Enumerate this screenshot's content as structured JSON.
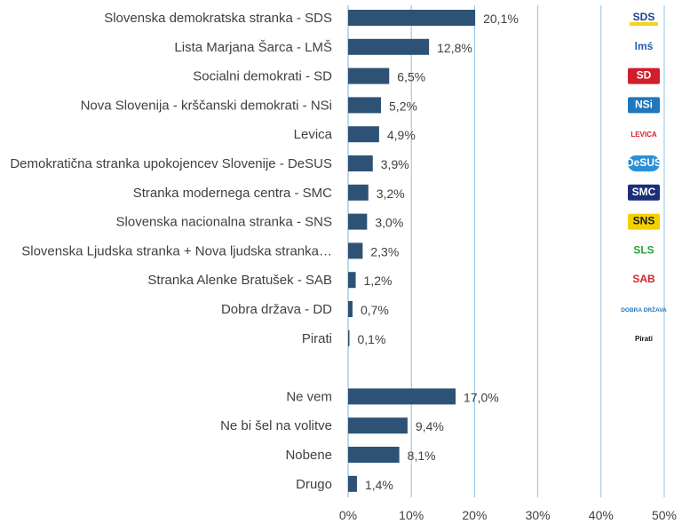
{
  "chart_data": {
    "type": "bar",
    "orientation": "horizontal",
    "categories": [
      "Slovenska demokratska stranka - SDS",
      "Lista Marjana Šarca - LMŠ",
      "Socialni demokrati - SD",
      "Nova Slovenija - krščanski demokrati - NSi",
      "Levica",
      "Demokratična stranka upokojencev Slovenije - DeSUS",
      "Stranka modernega centra - SMC",
      "Slovenska nacionalna stranka - SNS",
      "Slovenska Ljudska stranka + Nova ljudska stranka…",
      "Stranka Alenke Bratušek - SAB",
      "Dobra država - DD",
      "Pirati",
      "",
      "Ne vem",
      "Ne bi šel na volitve",
      "Nobene",
      "Drugo"
    ],
    "values": [
      20.1,
      12.8,
      6.5,
      5.2,
      4.9,
      3.9,
      3.2,
      3.0,
      2.3,
      1.2,
      0.7,
      0.1,
      null,
      17.0,
      9.4,
      8.1,
      1.4
    ],
    "value_labels": [
      "20,1%",
      "12,8%",
      "6,5%",
      "5,2%",
      "4,9%",
      "3,9%",
      "3,2%",
      "3,0%",
      "2,3%",
      "1,2%",
      "0,7%",
      "0,1%",
      "",
      "17,0%",
      "9,4%",
      "8,1%",
      "1,4%"
    ],
    "xlim": [
      0,
      50
    ],
    "x_ticks": [
      0,
      10,
      20,
      30,
      40,
      50
    ],
    "x_tick_labels": [
      "0%",
      "10%",
      "20%",
      "30%",
      "40%",
      "50%"
    ],
    "grid": "vertical",
    "colors": {
      "bar": "#2e5275",
      "grid": "#8cc2e0",
      "text": "#404040"
    },
    "logos": [
      {
        "text": "SDS",
        "color": "#1d3f8f",
        "accent": "#f3d417"
      },
      {
        "text": "lmś",
        "color": "#1f5fa8"
      },
      {
        "text": "SD",
        "color": "#ffffff",
        "bg": "#d21d2a"
      },
      {
        "text": "NSi",
        "color": "#ffffff",
        "bg": "#1f78bd"
      },
      {
        "text": "LEVICA",
        "color": "#d2232a"
      },
      {
        "text": "DeSUS",
        "color": "#ffffff",
        "bg": "#2b8fd6"
      },
      {
        "text": "SMC",
        "color": "#ffffff",
        "bg": "#1b2f7a"
      },
      {
        "text": "SNS",
        "color": "#1a1a1a",
        "bg": "#f3d000"
      },
      {
        "text": "SLS",
        "color": "#29a339"
      },
      {
        "text": "SAB",
        "color": "#d2232a"
      },
      {
        "text": "DOBRA DRŽAVA",
        "color": "#1f78bd"
      },
      {
        "text": "Pirati",
        "color": "#111111"
      },
      null,
      null,
      null,
      null,
      null
    ]
  }
}
